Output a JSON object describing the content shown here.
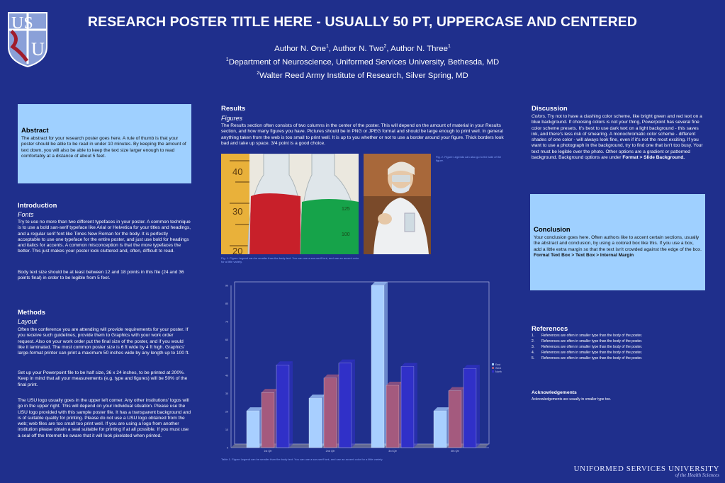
{
  "header": {
    "title": "RESEARCH POSTER TITLE HERE - USUALLY 50 PT, UPPERCASE AND CENTERED",
    "authors_prefix": "Author N. One",
    "authors_sup1": "1",
    "authors_mid1": ", Author N. Two",
    "authors_sup2": "2",
    "authors_mid2": ", Author N. Three",
    "authors_sup3": "1",
    "aff1_sup": "1",
    "aff1": "Department of Neuroscience, Uniformed Services University, Bethesda, MD",
    "aff2_sup": "2",
    "aff2": "Walter Reed Army Institute of Research, Silver Spring, MD"
  },
  "logo": {
    "text_top": "US",
    "text_bottom": "U"
  },
  "abstract": {
    "heading": "Abstract",
    "body": "The abstract for your research poster goes here. A rule of thumb is that your poster should be able to be read in under 10 minutes. By keeping the amount of text down, you will also be able to keep the text size larger enough to read comfortably at a distance of about 5 feet."
  },
  "introduction": {
    "heading": "Introduction",
    "subheading": "Fonts",
    "p1": "Try to use no more than two different typefaces in your poster. A common technique is to use a bold san-serif typeface like Arial or Helvetica for your titles and headings, and a regular serif font like Times New Roman for the body. It is perfectly acceptable to use one typeface for the entire poster, and just use bold for headings and italics for accents. A common misconception is that the more typefaces the better. This just makes your poster look cluttered and, often, difficult to read.",
    "p2": "Body text size should be at least between 12 and 18 points in this file (24 and 36 points final) in order to be legible from 5 feet."
  },
  "methods": {
    "heading": "Methods",
    "subheading": "Layout",
    "p1": "Often the conference you are attending will provide requirements for your poster. If you receive such guidelines, provide them to Graphics with your work order request. Also on your work order put the final size of the poster, and if you would like it laminated. The most common poster size is 6 ft wide by 4 ft high. Graphics' large-format printer can print a maximum 50 inches wide by any length up to 100 ft.",
    "p2": "Set up your Powerpoint file to be half size, 36 x 24 inches, to be printed at 200%. Keep in mind that all your measurements (e.g. type and figures) will be 50% of the final print.",
    "p3": "The USU logo usually goes in the upper left corner. Any other institutions' logos will go in the upper right. This will depend on your individual situation. Please use the USU logo provided with this sample poster file. It has a transparent background and is of suitable quality for printing. Please do not use a USU logo obtained from the web; web files are too small too print well. If you are using a logo from another institution please obtain a seal suitable for printing if at all possible. If you must use a seal off the Internet be sware that it will look pixelated when printed."
  },
  "results": {
    "heading": "Results",
    "subheading": "Figures",
    "body": "The Results section often consists of two columns in the center of the poster. This will depend on the amount of material in your Results section, and how many figures you have. Pictures should be in PNG or JPEG format and should be large enough to print well. In general anything taken from the web is too small to print well. It is up to you whether or not to use a border around your figure. Thick borders look bad and take up space. 3/4 point is a good choice.",
    "fig1_caption": "Fig. 1. Figure Legend can be smaller than the body text. You can use a san-serif font, and use an accent color for a little variety.",
    "fig2_caption": "Fig. 2. Figure Legends can also go to the side of the figure.",
    "table_caption": "Table 1. Figure Legend can be smaller than the body text. You can use a san-serif font, and use an accent color for a little variety.",
    "flask_labels": [
      "40",
      "30",
      "20",
      "125",
      "100"
    ]
  },
  "discussion": {
    "heading": "Discussion",
    "lead": "Colors.",
    "body": " Try not to have a clashing color scheme, like bright green and red text on a blue background. If choosing colors is not your thing, Powerpoint has several fine color scheme presets. It's best to use dark text on a light background - this saves ink, and there's less risk of smearing. A monochromatic color scheme - different shades of one color - will always look fine, even if it's not the most exciting. If you want to use a photograph in the background, try to find one that isn't too busy. Your text must be legible over the photo. Other options are a gradient or patterned background. Background options are under ",
    "bold_tail": "Format > Slide Background."
  },
  "conclusion": {
    "heading": "Conclusion",
    "body": "Your conclusion goes here. Often authors like to accent certain sections, usually the abstract and conclusion, by using a colored box like this. If you use a box, add a little extra margin so that the text isn't crowded against the edge of the box. ",
    "bold_tail": "Format Text Box > Text Box > Internal Margin"
  },
  "references": {
    "heading": "References",
    "items": [
      "References are often in smaller type than the body of the poster.",
      "References are often in smaller type than the body of the poster.",
      "References are often in smaller type than the body of the poster.",
      "References are often in smaller type than the body of the poster.",
      "References are often in smaller type than the body of the poster."
    ]
  },
  "acknowledgements": {
    "heading": "Acknowledgements",
    "body": "Acknowledgements are usually in smaller type too."
  },
  "footer": {
    "org": "UNIFORMED SERVICES UNIVERSITY",
    "tagline": "of the Health Sciences"
  },
  "chart_data": {
    "type": "bar",
    "categories": [
      "1st Qtr",
      "2nd Qtr",
      "3rd Qtr",
      "4th Qtr"
    ],
    "series": [
      {
        "name": "East",
        "values": [
          20.4,
          27.4,
          90,
          20.4
        ],
        "color": "#a8cfff"
      },
      {
        "name": "West",
        "values": [
          30.6,
          38.6,
          34.6,
          31.6
        ],
        "color": "#a45a7e"
      },
      {
        "name": "North",
        "values": [
          45.9,
          46.9,
          45,
          43.9
        ],
        "color": "#3030c8"
      }
    ],
    "ylim": [
      0,
      90
    ],
    "yticks": [
      "0",
      "10",
      "20",
      "30",
      "40",
      "50",
      "60",
      "70",
      "80",
      "90"
    ],
    "grid": false,
    "legend": "right",
    "colors": {
      "plot_bg": "#1f2f8c",
      "axis": "#c8cdf0"
    }
  }
}
